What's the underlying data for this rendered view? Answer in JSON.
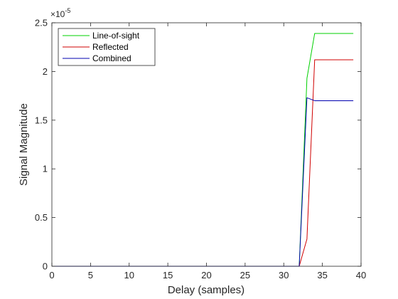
{
  "chart_data": {
    "type": "line",
    "title": "",
    "xlabel": "Delay (samples)",
    "ylabel": "Signal Magnitude",
    "xlim": [
      0,
      40
    ],
    "ylim": [
      0,
      2.5e-05
    ],
    "xticks": [
      0,
      5,
      10,
      15,
      20,
      25,
      30,
      35,
      40
    ],
    "xtick_labels": [
      "0",
      "5",
      "10",
      "15",
      "20",
      "25",
      "30",
      "35",
      "40"
    ],
    "yticks": [
      0,
      5e-06,
      1e-05,
      1.5e-05,
      2e-05,
      2.5e-05
    ],
    "ytick_labels": [
      "0",
      "0.5",
      "1",
      "1.5",
      "2",
      "2.5"
    ],
    "y_multiplier_label": "×10",
    "y_multiplier_exponent": "-5",
    "grid": false,
    "legend_position": "top-left",
    "series": [
      {
        "name": "Line-of-sight",
        "color": "#00d000",
        "x": [
          0,
          32,
          33,
          34,
          39
        ],
        "y": [
          0,
          0,
          1.93e-05,
          2.39e-05,
          2.39e-05
        ]
      },
      {
        "name": "Reflected",
        "color": "#d00000",
        "x": [
          0,
          32,
          33,
          34,
          39
        ],
        "y": [
          0,
          0,
          2.8e-06,
          2.12e-05,
          2.12e-05
        ]
      },
      {
        "name": "Combined",
        "color": "#0000b0",
        "x": [
          0,
          32,
          33,
          34,
          39
        ],
        "y": [
          0,
          0,
          1.73e-05,
          1.7e-05,
          1.7e-05
        ]
      }
    ]
  }
}
